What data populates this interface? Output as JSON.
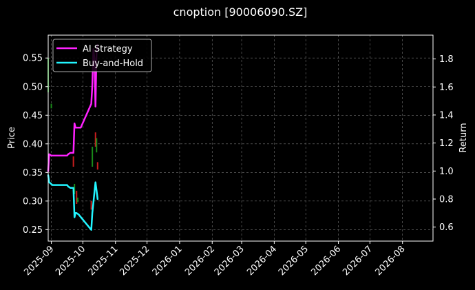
{
  "chart_data": {
    "type": "line",
    "title": "cnoption [90006090.SZ]",
    "ylabel": "Price",
    "ylabel_right": "Return",
    "x_range": [
      "2025-08-29",
      "2026-08-30"
    ],
    "x_ticks": [
      "2025-09",
      "2025-10",
      "2025-11",
      "2025-12",
      "2026-01",
      "2026-02",
      "2026-03",
      "2026-04",
      "2026-05",
      "2026-06",
      "2026-07",
      "2026-08"
    ],
    "ylim": [
      0.23,
      0.59
    ],
    "yticks": [
      0.25,
      0.3,
      0.35,
      0.4,
      0.45,
      0.5,
      0.55
    ],
    "ylim_right": [
      0.5,
      1.97
    ],
    "yticks_right": [
      0.6,
      0.8,
      1.0,
      1.2,
      1.4,
      1.6,
      1.8
    ],
    "grid": true,
    "legend_placement": "top-left",
    "series": [
      {
        "name": "AI Strategy",
        "color": "#ff22ff",
        "axis": "right",
        "points": [
          [
            "2025-08-29",
            1.0
          ],
          [
            "2025-08-30",
            1.12
          ],
          [
            "2025-09-01",
            1.11
          ],
          [
            "2025-09-16",
            1.11
          ],
          [
            "2025-09-17",
            1.12
          ],
          [
            "2025-09-19",
            1.13
          ],
          [
            "2025-09-22",
            1.13
          ],
          [
            "2025-09-23",
            1.34
          ],
          [
            "2025-09-24",
            1.31
          ],
          [
            "2025-09-25",
            1.31
          ],
          [
            "2025-09-29",
            1.31
          ],
          [
            "2025-10-09",
            1.48
          ],
          [
            "2025-10-10",
            1.61
          ],
          [
            "2025-10-11",
            1.87
          ],
          [
            "2025-10-12",
            1.8
          ],
          [
            "2025-10-13",
            1.46
          ],
          [
            "2025-10-14",
            1.86
          ],
          [
            "2025-10-15",
            1.9
          ]
        ]
      },
      {
        "name": "Buy-and-Hold",
        "color": "#22f5ff",
        "axis": "right",
        "points": [
          [
            "2025-08-29",
            0.97
          ],
          [
            "2025-08-30",
            0.92
          ],
          [
            "2025-09-02",
            0.9
          ],
          [
            "2025-09-16",
            0.9
          ],
          [
            "2025-09-17",
            0.89
          ],
          [
            "2025-09-19",
            0.88
          ],
          [
            "2025-09-22",
            0.88
          ],
          [
            "2025-09-23",
            0.67
          ],
          [
            "2025-09-24",
            0.7
          ],
          [
            "2025-09-25",
            0.7
          ],
          [
            "2025-09-27",
            0.69
          ],
          [
            "2025-10-09",
            0.58
          ],
          [
            "2025-10-10",
            0.7
          ],
          [
            "2025-10-13",
            0.92
          ],
          [
            "2025-10-14",
            0.86
          ],
          [
            "2025-10-15",
            0.8
          ]
        ]
      }
    ],
    "candles": [
      {
        "date": "2025-08-29",
        "low": 0.49,
        "high": 0.55,
        "color": "#1a8a1a"
      },
      {
        "date": "2025-09-01",
        "low": 0.462,
        "high": 0.47,
        "color": "#1a8a1a"
      },
      {
        "date": "2025-09-22",
        "low": 0.36,
        "high": 0.378,
        "color": "#c81e1e"
      },
      {
        "date": "2025-09-23",
        "low": 0.312,
        "high": 0.33,
        "color": "#1a8a1a"
      },
      {
        "date": "2025-09-25",
        "low": 0.295,
        "high": 0.318,
        "color": "#c81e1e"
      },
      {
        "date": "2025-09-26",
        "low": 0.298,
        "high": 0.306,
        "color": "#1a8a1a"
      },
      {
        "date": "2025-10-09",
        "low": 0.285,
        "high": 0.3,
        "color": "#c81e1e"
      },
      {
        "date": "2025-10-10",
        "low": 0.36,
        "high": 0.395,
        "color": "#1a8a1a"
      },
      {
        "date": "2025-10-13",
        "low": 0.395,
        "high": 0.42,
        "color": "#c81e1e"
      },
      {
        "date": "2025-10-14",
        "low": 0.385,
        "high": 0.41,
        "color": "#1a8a1a"
      },
      {
        "date": "2025-10-15",
        "low": 0.355,
        "high": 0.368,
        "color": "#c81e1e"
      }
    ]
  }
}
